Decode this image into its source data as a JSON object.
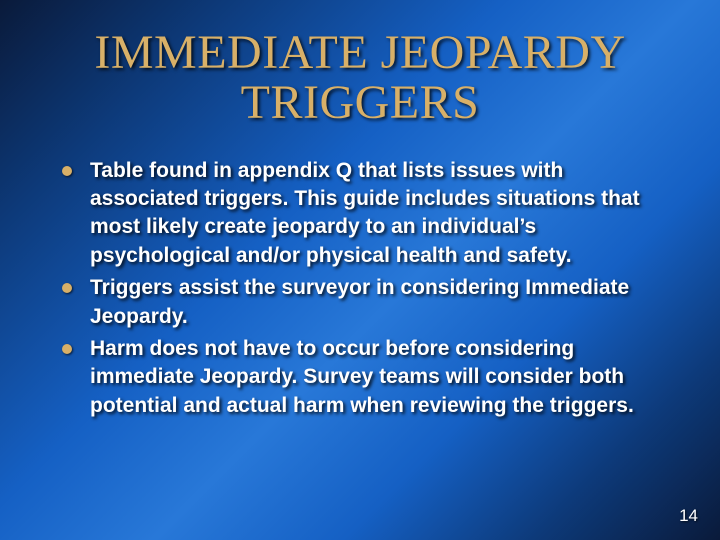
{
  "slide": {
    "title": "IMMEDIATE JEOPARDY TRIGGERS",
    "title_color": "#d8b068",
    "title_fontsize": 48,
    "bullet_color": "#d8b068",
    "text_color": "#ffffff",
    "body_fontsize": 21,
    "background_gradient": [
      "#0a1a3a",
      "#0d3a7a",
      "#1560c4",
      "#2878d8",
      "#1560c4",
      "#0d3a7a",
      "#0a1a3a"
    ],
    "bullets": [
      "Table found in appendix Q that lists issues with associated triggers.  This guide includes situations that most likely create jeopardy to an individual’s psychological and/or physical health and safety.",
      "Triggers assist the surveyor in considering Immediate Jeopardy.",
      "Harm does not have to occur before considering immediate Jeopardy.  Survey teams will consider both potential and actual harm when reviewing the triggers."
    ],
    "page_number": "14"
  }
}
